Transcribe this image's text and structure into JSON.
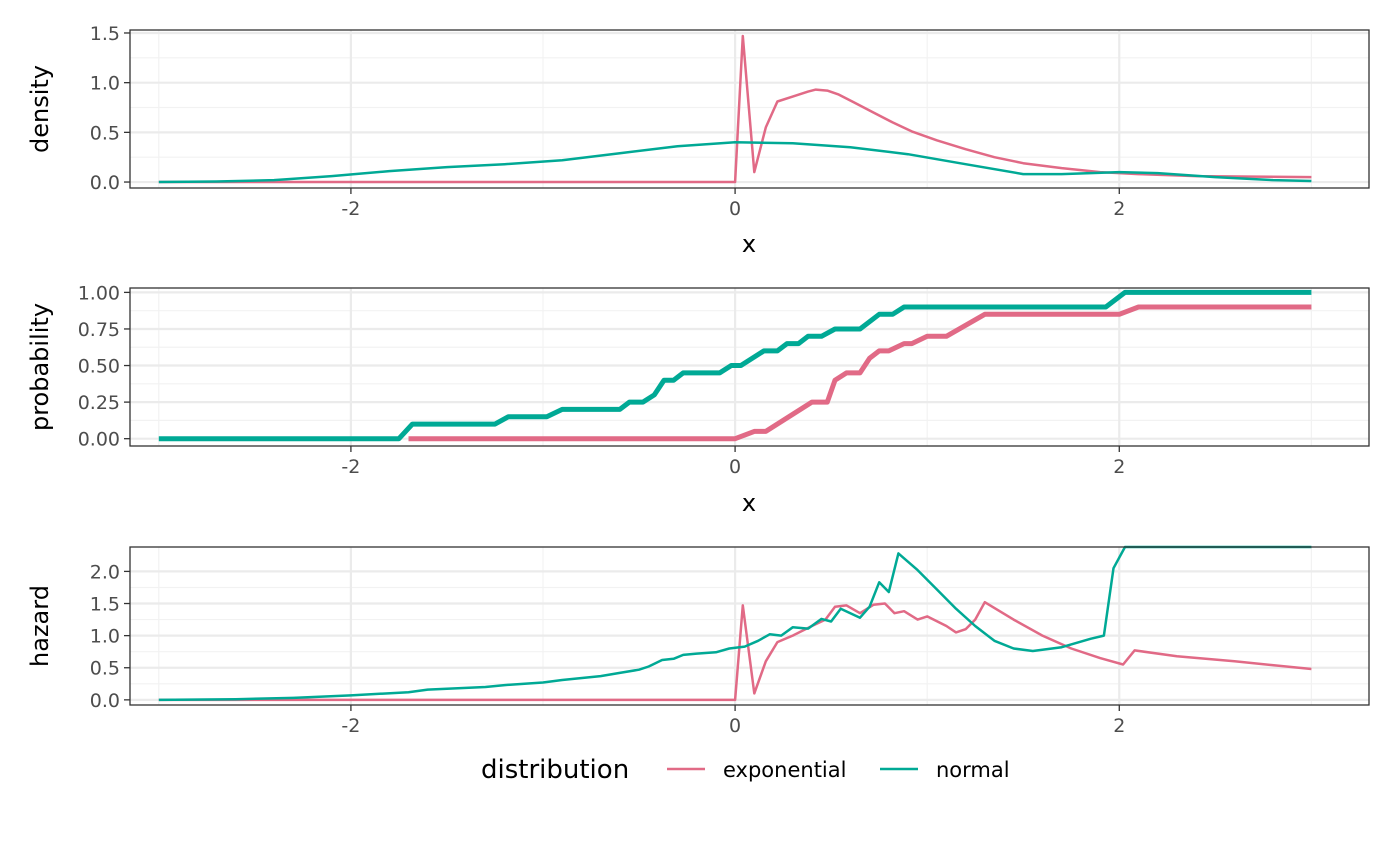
{
  "chart_data": [
    {
      "type": "line",
      "xlabel": "x",
      "ylabel": "density",
      "xlim": [
        -3.15,
        3.3
      ],
      "ylim": [
        -0.06,
        1.53
      ],
      "x_ticks": [
        {
          "v": -2,
          "label": "-2"
        },
        {
          "v": 0,
          "label": "0"
        },
        {
          "v": 2,
          "label": "2"
        }
      ],
      "y_ticks": [
        {
          "v": 0.0,
          "label": "0.0"
        },
        {
          "v": 0.5,
          "label": "0.5"
        },
        {
          "v": 1.0,
          "label": "1.0"
        },
        {
          "v": 1.5,
          "label": "1.5"
        }
      ],
      "grid": true,
      "series": [
        {
          "name": "exponential",
          "color": "#E16A86",
          "width": 2.5,
          "points": [
            [
              -3.0,
              0.0
            ],
            [
              -2.0,
              0.0
            ],
            [
              -1.0,
              0.0
            ],
            [
              0.0,
              0.0
            ],
            [
              0.04,
              1.47
            ],
            [
              0.1,
              0.1
            ],
            [
              0.16,
              0.55
            ],
            [
              0.22,
              0.81
            ],
            [
              0.3,
              0.86
            ],
            [
              0.38,
              0.91
            ],
            [
              0.42,
              0.93
            ],
            [
              0.48,
              0.92
            ],
            [
              0.54,
              0.88
            ],
            [
              0.62,
              0.8
            ],
            [
              0.72,
              0.7
            ],
            [
              0.82,
              0.6
            ],
            [
              0.92,
              0.51
            ],
            [
              1.05,
              0.42
            ],
            [
              1.2,
              0.33
            ],
            [
              1.35,
              0.25
            ],
            [
              1.5,
              0.19
            ],
            [
              1.7,
              0.14
            ],
            [
              1.9,
              0.1
            ],
            [
              2.1,
              0.08
            ],
            [
              2.4,
              0.06
            ],
            [
              2.7,
              0.055
            ],
            [
              3.0,
              0.05
            ]
          ]
        },
        {
          "name": "normal",
          "color": "#00A995",
          "width": 2.5,
          "points": [
            [
              -3.0,
              0.0
            ],
            [
              -2.7,
              0.005
            ],
            [
              -2.4,
              0.02
            ],
            [
              -2.1,
              0.06
            ],
            [
              -1.8,
              0.11
            ],
            [
              -1.5,
              0.15
            ],
            [
              -1.2,
              0.18
            ],
            [
              -0.9,
              0.22
            ],
            [
              -0.6,
              0.29
            ],
            [
              -0.3,
              0.36
            ],
            [
              0.0,
              0.4
            ],
            [
              0.3,
              0.39
            ],
            [
              0.6,
              0.35
            ],
            [
              0.9,
              0.28
            ],
            [
              1.2,
              0.18
            ],
            [
              1.5,
              0.08
            ],
            [
              1.7,
              0.08
            ],
            [
              2.0,
              0.1
            ],
            [
              2.2,
              0.09
            ],
            [
              2.5,
              0.05
            ],
            [
              2.8,
              0.02
            ],
            [
              3.0,
              0.01
            ]
          ]
        }
      ]
    },
    {
      "type": "line",
      "xlabel": "x",
      "ylabel": "probability",
      "xlim": [
        -3.15,
        3.3
      ],
      "ylim": [
        -0.05,
        1.03
      ],
      "x_ticks": [
        {
          "v": -2,
          "label": "-2"
        },
        {
          "v": 0,
          "label": "0"
        },
        {
          "v": 2,
          "label": "2"
        }
      ],
      "y_ticks": [
        {
          "v": 0.0,
          "label": "0.00"
        },
        {
          "v": 0.25,
          "label": "0.25"
        },
        {
          "v": 0.5,
          "label": "0.50"
        },
        {
          "v": 0.75,
          "label": "0.75"
        },
        {
          "v": 1.0,
          "label": "1.00"
        }
      ],
      "grid": true,
      "series": [
        {
          "name": "exponential",
          "color": "#E16A86",
          "width": 5,
          "points": [
            [
              -1.7,
              0.0
            ],
            [
              0.0,
              0.0
            ],
            [
              0.1,
              0.05
            ],
            [
              0.16,
              0.05
            ],
            [
              0.4,
              0.25
            ],
            [
              0.48,
              0.25
            ],
            [
              0.52,
              0.4
            ],
            [
              0.58,
              0.45
            ],
            [
              0.65,
              0.45
            ],
            [
              0.7,
              0.55
            ],
            [
              0.75,
              0.6
            ],
            [
              0.8,
              0.6
            ],
            [
              0.88,
              0.65
            ],
            [
              0.92,
              0.65
            ],
            [
              1.0,
              0.7
            ],
            [
              1.1,
              0.7
            ],
            [
              1.3,
              0.85
            ],
            [
              2.0,
              0.85
            ],
            [
              2.1,
              0.9
            ],
            [
              3.0,
              0.9
            ]
          ]
        },
        {
          "name": "normal",
          "color": "#00A995",
          "width": 5,
          "points": [
            [
              -3.0,
              0.0
            ],
            [
              -1.75,
              0.0
            ],
            [
              -1.68,
              0.1
            ],
            [
              -1.25,
              0.1
            ],
            [
              -1.18,
              0.15
            ],
            [
              -0.98,
              0.15
            ],
            [
              -0.9,
              0.2
            ],
            [
              -0.6,
              0.2
            ],
            [
              -0.55,
              0.25
            ],
            [
              -0.48,
              0.25
            ],
            [
              -0.42,
              0.3
            ],
            [
              -0.37,
              0.4
            ],
            [
              -0.32,
              0.4
            ],
            [
              -0.27,
              0.45
            ],
            [
              -0.08,
              0.45
            ],
            [
              -0.02,
              0.5
            ],
            [
              0.03,
              0.5
            ],
            [
              0.15,
              0.6
            ],
            [
              0.22,
              0.6
            ],
            [
              0.27,
              0.65
            ],
            [
              0.33,
              0.65
            ],
            [
              0.38,
              0.7
            ],
            [
              0.45,
              0.7
            ],
            [
              0.52,
              0.75
            ],
            [
              0.65,
              0.75
            ],
            [
              0.75,
              0.85
            ],
            [
              0.82,
              0.85
            ],
            [
              0.88,
              0.9
            ],
            [
              1.93,
              0.9
            ],
            [
              2.03,
              1.0
            ],
            [
              3.0,
              1.0
            ]
          ]
        }
      ]
    },
    {
      "type": "line",
      "xlabel": "",
      "ylabel": "hazard",
      "xlim": [
        -3.15,
        3.3
      ],
      "ylim": [
        -0.08,
        2.38
      ],
      "x_ticks": [
        {
          "v": -2,
          "label": "-2"
        },
        {
          "v": 0,
          "label": "0"
        },
        {
          "v": 2,
          "label": "2"
        }
      ],
      "y_ticks": [
        {
          "v": 0.0,
          "label": "0.0"
        },
        {
          "v": 0.5,
          "label": "0.5"
        },
        {
          "v": 1.0,
          "label": "1.0"
        },
        {
          "v": 1.5,
          "label": "1.5"
        },
        {
          "v": 2.0,
          "label": "2.0"
        }
      ],
      "grid": true,
      "series": [
        {
          "name": "exponential",
          "color": "#E16A86",
          "width": 2.5,
          "points": [
            [
              -3.0,
              0.0
            ],
            [
              -2.0,
              0.0
            ],
            [
              -1.0,
              0.0
            ],
            [
              0.0,
              0.0
            ],
            [
              0.04,
              1.47
            ],
            [
              0.1,
              0.1
            ],
            [
              0.16,
              0.6
            ],
            [
              0.22,
              0.9
            ],
            [
              0.3,
              1.0
            ],
            [
              0.4,
              1.15
            ],
            [
              0.47,
              1.25
            ],
            [
              0.52,
              1.45
            ],
            [
              0.58,
              1.47
            ],
            [
              0.65,
              1.35
            ],
            [
              0.72,
              1.48
            ],
            [
              0.78,
              1.5
            ],
            [
              0.83,
              1.35
            ],
            [
              0.88,
              1.38
            ],
            [
              0.95,
              1.25
            ],
            [
              1.0,
              1.3
            ],
            [
              1.1,
              1.15
            ],
            [
              1.15,
              1.05
            ],
            [
              1.2,
              1.1
            ],
            [
              1.25,
              1.25
            ],
            [
              1.3,
              1.52
            ],
            [
              1.45,
              1.25
            ],
            [
              1.6,
              1.0
            ],
            [
              1.75,
              0.8
            ],
            [
              1.9,
              0.65
            ],
            [
              2.02,
              0.55
            ],
            [
              2.08,
              0.77
            ],
            [
              2.3,
              0.68
            ],
            [
              2.6,
              0.6
            ],
            [
              3.0,
              0.48
            ]
          ]
        },
        {
          "name": "normal",
          "color": "#00A995",
          "width": 2.5,
          "points": [
            [
              -3.0,
              0.0
            ],
            [
              -2.6,
              0.01
            ],
            [
              -2.3,
              0.03
            ],
            [
              -2.0,
              0.07
            ],
            [
              -1.7,
              0.12
            ],
            [
              -1.6,
              0.16
            ],
            [
              -1.3,
              0.2
            ],
            [
              -1.2,
              0.23
            ],
            [
              -1.0,
              0.27
            ],
            [
              -0.9,
              0.31
            ],
            [
              -0.7,
              0.37
            ],
            [
              -0.6,
              0.42
            ],
            [
              -0.5,
              0.47
            ],
            [
              -0.45,
              0.52
            ],
            [
              -0.38,
              0.62
            ],
            [
              -0.32,
              0.64
            ],
            [
              -0.27,
              0.7
            ],
            [
              -0.2,
              0.72
            ],
            [
              -0.1,
              0.74
            ],
            [
              -0.03,
              0.8
            ],
            [
              0.05,
              0.83
            ],
            [
              0.12,
              0.92
            ],
            [
              0.18,
              1.02
            ],
            [
              0.24,
              1.0
            ],
            [
              0.3,
              1.13
            ],
            [
              0.38,
              1.11
            ],
            [
              0.45,
              1.26
            ],
            [
              0.5,
              1.22
            ],
            [
              0.55,
              1.42
            ],
            [
              0.65,
              1.28
            ],
            [
              0.7,
              1.45
            ],
            [
              0.75,
              1.83
            ],
            [
              0.8,
              1.68
            ],
            [
              0.85,
              2.28
            ],
            [
              0.95,
              2.02
            ],
            [
              1.05,
              1.72
            ],
            [
              1.15,
              1.42
            ],
            [
              1.25,
              1.15
            ],
            [
              1.35,
              0.92
            ],
            [
              1.45,
              0.8
            ],
            [
              1.55,
              0.76
            ],
            [
              1.7,
              0.82
            ],
            [
              1.85,
              0.95
            ],
            [
              1.92,
              1.0
            ],
            [
              1.97,
              2.05
            ],
            [
              2.03,
              2.38
            ],
            [
              3.0,
              2.38
            ]
          ]
        }
      ]
    }
  ],
  "legend": {
    "title": "distribution",
    "position": "bottom",
    "items": [
      {
        "label": "exponential",
        "color": "#E16A86"
      },
      {
        "label": "normal",
        "color": "#00A995"
      }
    ]
  }
}
